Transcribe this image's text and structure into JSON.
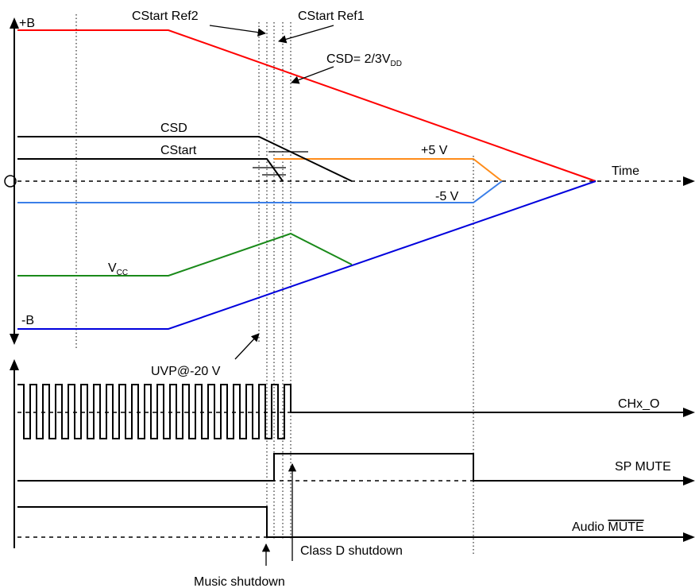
{
  "labels": {
    "plus_b": "+B",
    "minus_b": "-B",
    "cstart_ref2": "CStart Ref2",
    "cstart_ref1": "CStart Ref1",
    "csd_eq_main": "CSD= 2/3V",
    "csd_eq_sub": "DD",
    "csd": "CSD",
    "cstart": "CStart",
    "plus_5v": "+5 V",
    "minus_5v": "-5 V",
    "time": "Time",
    "vcc_main": "V",
    "vcc_sub": "CC",
    "uvp": "UVP@-20 V",
    "chx_o": "CHx_O",
    "sp_mute": "SP MUTE",
    "audio_mute_prefix": "Audio ",
    "audio_mute_bar": "MUTE",
    "class_d_shutdown": "Class D shutdown",
    "music_shutdown": "Music shutdown"
  },
  "colors": {
    "plus_b": "#ff0000",
    "minus_b": "#0000dd",
    "plus_5v": "#ff8c1a",
    "minus_5v": "#3a7ee8",
    "vcc": "#1a8a1a",
    "csd": "#000000",
    "cstart": "#000000"
  }
}
